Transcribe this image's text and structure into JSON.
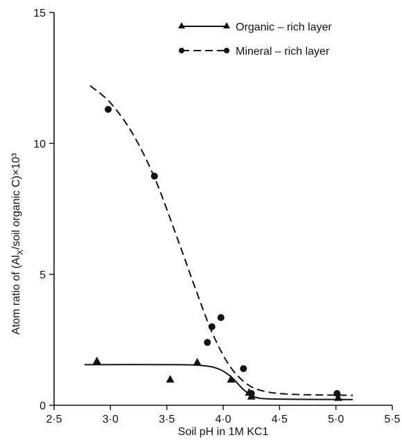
{
  "chart_data": {
    "type": "scatter",
    "title": "",
    "xlabel": "Soil pH in 1M KC1",
    "ylabel": "Atom ratio of (Al_x/soil organic C)×10³",
    "ylabel_parts": {
      "pre": "Atom ratio of (A",
      "mid": "l",
      "sub": "X",
      "post": "/soil organic C)×10³"
    },
    "xlim": [
      2.5,
      5.5
    ],
    "ylim": [
      0,
      15
    ],
    "xticks": [
      2.5,
      3.0,
      3.5,
      4.0,
      4.5,
      5.0,
      5.5
    ],
    "xtick_labels": [
      "2·5",
      "3·0",
      "3·5",
      "4·0",
      "4·5",
      "5·0",
      "5·5"
    ],
    "yticks": [
      0,
      5,
      10,
      15
    ],
    "ytick_labels": [
      "0",
      "5",
      "10",
      "15"
    ],
    "grid": false,
    "legend_position": "top-right",
    "series": [
      {
        "name": "Organic – rich layer",
        "marker": "triangle",
        "line": "solid",
        "points": [
          {
            "x": 2.88,
            "y": 1.7
          },
          {
            "x": 3.53,
            "y": 1.0
          },
          {
            "x": 3.77,
            "y": 1.65
          },
          {
            "x": 4.07,
            "y": 1.0
          },
          {
            "x": 4.23,
            "y": 0.5
          },
          {
            "x": 4.25,
            "y": 0.35
          },
          {
            "x": 5.02,
            "y": 0.3
          }
        ],
        "fit_curve": [
          {
            "x": 2.77,
            "y": 1.55
          },
          {
            "x": 3.6,
            "y": 1.55
          },
          {
            "x": 3.85,
            "y": 1.5
          },
          {
            "x": 3.98,
            "y": 1.35
          },
          {
            "x": 4.08,
            "y": 1.05
          },
          {
            "x": 4.18,
            "y": 0.6
          },
          {
            "x": 4.28,
            "y": 0.32
          },
          {
            "x": 4.45,
            "y": 0.24
          },
          {
            "x": 5.15,
            "y": 0.22
          }
        ]
      },
      {
        "name": "Mineral – rich layer",
        "marker": "circle",
        "line": "dashed",
        "points": [
          {
            "x": 2.98,
            "y": 11.3
          },
          {
            "x": 3.39,
            "y": 8.75
          },
          {
            "x": 3.86,
            "y": 2.4
          },
          {
            "x": 3.9,
            "y": 3.0
          },
          {
            "x": 3.98,
            "y": 3.35
          },
          {
            "x": 4.18,
            "y": 1.4
          },
          {
            "x": 4.25,
            "y": 0.45
          },
          {
            "x": 5.01,
            "y": 0.45
          }
        ],
        "fit_curve": [
          {
            "x": 2.82,
            "y": 12.2
          },
          {
            "x": 3.0,
            "y": 11.55
          },
          {
            "x": 3.2,
            "y": 10.35
          },
          {
            "x": 3.4,
            "y": 8.6
          },
          {
            "x": 3.6,
            "y": 6.3
          },
          {
            "x": 3.75,
            "y": 4.5
          },
          {
            "x": 3.9,
            "y": 2.8
          },
          {
            "x": 4.05,
            "y": 1.55
          },
          {
            "x": 4.2,
            "y": 0.85
          },
          {
            "x": 4.35,
            "y": 0.55
          },
          {
            "x": 4.6,
            "y": 0.42
          },
          {
            "x": 5.15,
            "y": 0.38
          }
        ]
      }
    ]
  }
}
